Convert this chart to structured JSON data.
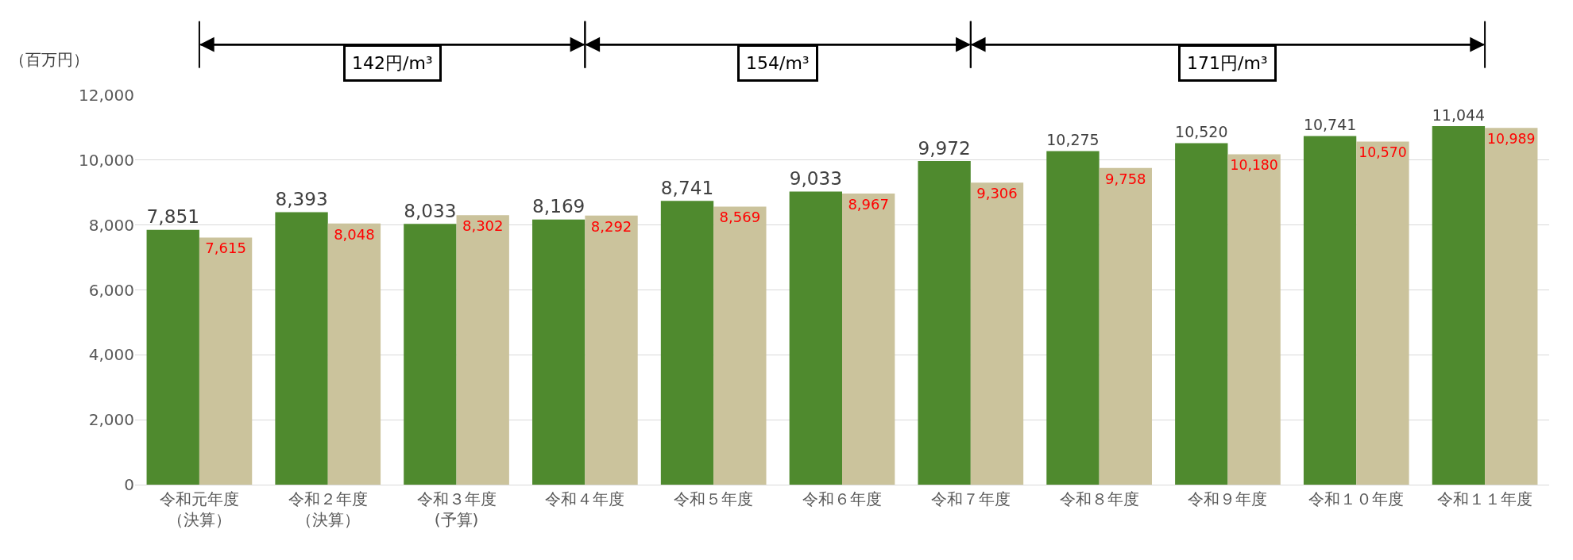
{
  "chart_data": {
    "type": "bar",
    "ylabel": "（百万円）",
    "categories": [
      "令和元年度（決算）",
      "令和２年度（決算）",
      "令和３年度(予算)",
      "令和４年度",
      "令和５年度",
      "令和６年度",
      "令和７年度",
      "令和８年度",
      "令和９年度",
      "令和１０年度",
      "令和１１年度"
    ],
    "series": [
      {
        "color": "#4f8a2e",
        "values": [
          7851,
          8393,
          8033,
          8169,
          8741,
          9033,
          9972,
          10275,
          10520,
          10741,
          11044
        ],
        "value_labels": [
          "7,851",
          "8,393",
          "8,033",
          "8,169",
          "8,741",
          "9,033",
          "9,972",
          "10,275",
          "10,520",
          "10,741",
          "11,044"
        ]
      },
      {
        "color": "#cbc39c",
        "values": [
          7615,
          8048,
          8302,
          8292,
          8569,
          8967,
          9306,
          9758,
          10180,
          10570,
          10989
        ],
        "value_labels": [
          "7,615",
          "8,048",
          "8,302",
          "8,292",
          "8,569",
          "8,967",
          "9,306",
          "9,758",
          "10,180",
          "10,570",
          "10,989"
        ]
      }
    ],
    "ylim": [
      0,
      12000
    ],
    "yticks": [
      0,
      {
        "value": 2000,
        "label": "2,000"
      },
      {
        "value": 4000,
        "label": "4,000"
      },
      {
        "value": 6000,
        "label": "6,000"
      },
      {
        "value": 8000,
        "label": "8,000"
      },
      {
        "value": 10000,
        "label": "10,000"
      },
      {
        "value": 12000,
        "label": "12,000"
      }
    ],
    "grid": "y",
    "annotations": [
      "142円/m³",
      "154/m³",
      "171円/m³"
    ]
  }
}
